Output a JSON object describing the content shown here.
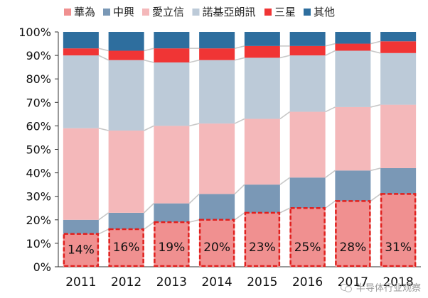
{
  "chart_data": {
    "type": "bar",
    "stacked": true,
    "normalized": true,
    "categories": [
      "2011",
      "2012",
      "2013",
      "2014",
      "2015",
      "2016",
      "2017",
      "2018"
    ],
    "series": [
      {
        "name": "華為",
        "color": "#f09090",
        "highlight": true,
        "values": [
          14,
          16,
          19,
          20,
          23,
          25,
          28,
          31
        ],
        "labels": [
          "14%",
          "16%",
          "19%",
          "20%",
          "23%",
          "25%",
          "28%",
          "31%"
        ]
      },
      {
        "name": "中興",
        "color": "#7a98b6",
        "values": [
          6,
          7,
          8,
          11,
          12,
          13,
          13,
          11
        ]
      },
      {
        "name": "愛立信",
        "color": "#f4b8ba",
        "values": [
          39,
          35,
          33,
          30,
          28,
          28,
          27,
          27
        ]
      },
      {
        "name": "諾基亞朗訊",
        "color": "#bccad8",
        "values": [
          31,
          30,
          27,
          27,
          26,
          24,
          24,
          22
        ]
      },
      {
        "name": "三星",
        "color": "#f03535",
        "values": [
          3,
          4,
          6,
          5,
          5,
          4,
          3,
          5
        ]
      },
      {
        "name": "其他",
        "color": "#2e6e9e",
        "values": [
          7,
          8,
          7,
          7,
          6,
          6,
          5,
          4
        ]
      }
    ],
    "ylim": [
      0,
      100
    ],
    "yticks": [
      "0%",
      "10%",
      "20%",
      "30%",
      "40%",
      "50%",
      "60%",
      "70%",
      "80%",
      "90%",
      "100%"
    ],
    "legend": "top",
    "connector_lines": true,
    "grid": false
  },
  "watermark": {
    "text": "半导体行业观察",
    "icon": "wechat-icon"
  }
}
